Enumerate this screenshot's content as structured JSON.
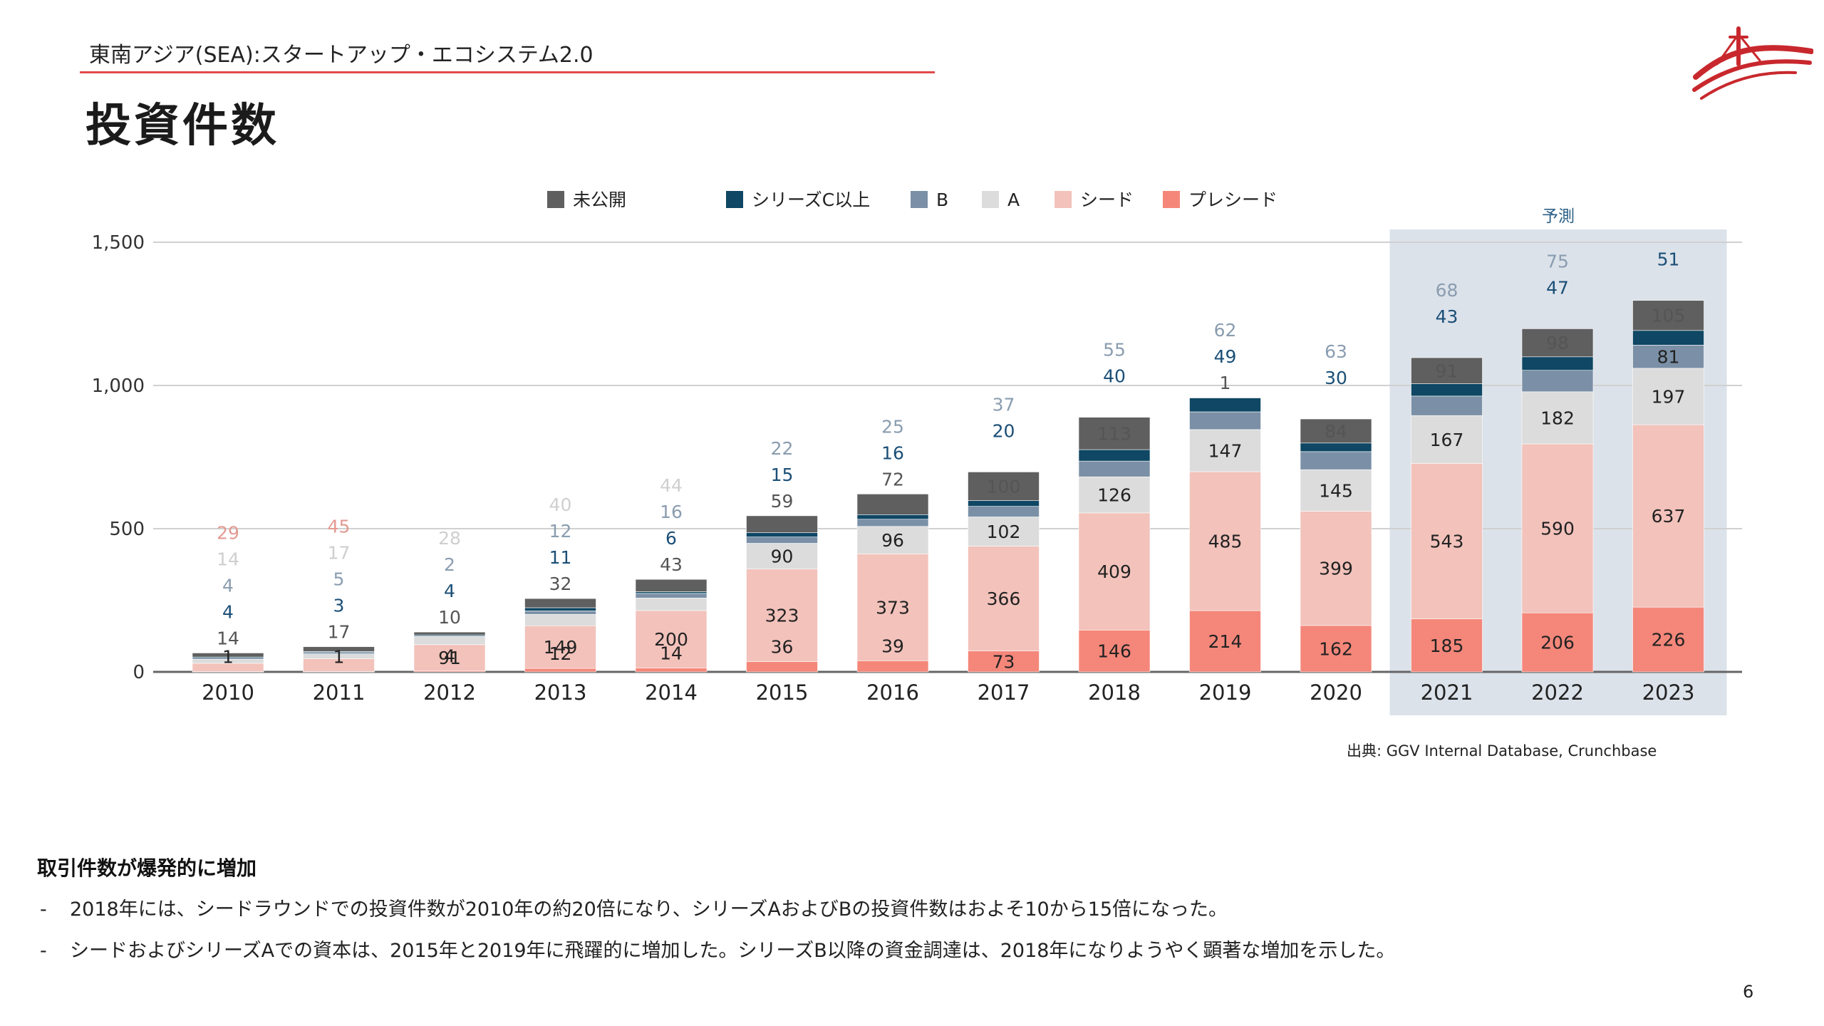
{
  "header": {
    "subtitle": "東南アジア(SEA):スタートアップ・エコシステム2.0",
    "title": "投資件数"
  },
  "colors": {
    "accent": "#e24a4a",
    "forecast_band": "#d6dde6",
    "pre_seed": "#f4877a",
    "seed": "#f2c2bb",
    "series_a": "#dcdcdc",
    "series_b": "#7b90a6",
    "series_c_plus": "#0f4764",
    "undisclosed": "#5f5f5f",
    "logo": "#c8282d"
  },
  "logo_icon": "bridge-logo-icon",
  "chart_data": {
    "type": "bar",
    "stacked": true,
    "categories": [
      "2010",
      "2011",
      "2012",
      "2013",
      "2014",
      "2015",
      "2016",
      "2017",
      "2018",
      "2019",
      "2020",
      "2021",
      "2022",
      "2023"
    ],
    "forecast_label": "予測",
    "forecast_categories": [
      "2021",
      "2022",
      "2023"
    ],
    "ylim": [
      0,
      1500
    ],
    "yticks": [
      0,
      500,
      1000,
      1500
    ],
    "ytick_labels": [
      "0",
      "500",
      "1,000",
      "1,500"
    ],
    "grid": true,
    "legend_position": "top",
    "series": [
      {
        "name": "プレシード",
        "color_key": "pre_seed",
        "values": [
          1,
          1,
          4,
          12,
          14,
          36,
          39,
          73,
          146,
          214,
          162,
          185,
          206,
          226
        ],
        "label_placement": "inside"
      },
      {
        "name": "シード",
        "color_key": "seed",
        "values": [
          29,
          45,
          91,
          149,
          200,
          323,
          373,
          366,
          409,
          485,
          399,
          543,
          590,
          637
        ],
        "label_placement": "mixed"
      },
      {
        "name": "A",
        "color_key": "series_a",
        "values": [
          14,
          17,
          28,
          40,
          44,
          90,
          96,
          102,
          126,
          147,
          145,
          167,
          182,
          197
        ],
        "label_placement": "mixed"
      },
      {
        "name": "B",
        "color_key": "series_b",
        "values": [
          4,
          5,
          2,
          12,
          16,
          22,
          25,
          37,
          55,
          62,
          63,
          68,
          75,
          81
        ],
        "label_placement": "mixed"
      },
      {
        "name": "シリーズC以上",
        "color_key": "series_c_plus",
        "values": [
          4,
          3,
          4,
          11,
          6,
          15,
          16,
          20,
          40,
          49,
          30,
          43,
          47,
          51
        ],
        "label_placement": "above"
      },
      {
        "name": "未公開",
        "color_key": "undisclosed",
        "values": [
          14,
          17,
          10,
          32,
          43,
          59,
          72,
          100,
          113,
          1,
          84,
          91,
          98,
          105
        ],
        "label_placement": "above"
      }
    ],
    "value_labels": [
      {
        "category": "2010",
        "labels": [
          "1",
          "29",
          "14",
          "4",
          "4",
          "14"
        ]
      },
      {
        "category": "2011",
        "labels": [
          "1",
          "45",
          "17",
          "5",
          "3",
          "17"
        ]
      },
      {
        "category": "2012",
        "labels": [
          "4",
          "91",
          "28",
          "2",
          "4",
          "10"
        ]
      },
      {
        "category": "2013",
        "labels": [
          "12",
          "149",
          "40",
          "12",
          "11",
          "32"
        ]
      },
      {
        "category": "2014",
        "labels": [
          "14",
          "200",
          "44",
          "16",
          "6",
          "43"
        ]
      }
    ]
  },
  "source": "出典: GGV Internal Database, Crunchbase",
  "body": {
    "heading": "取引件数が爆発的に増加",
    "bullets": [
      {
        "marker": "-",
        "text": "2018年には、シードラウンドでの投資件数が2010年の約20倍になり、シリーズAおよびBの投資件数はおよそ10から15倍になった。"
      },
      {
        "marker": "-",
        "text": "シードおよびシリーズAでの資本は、2015年と2019年に飛躍的に増加した。シリーズB以降の資金調達は、2018年になりようやく顕著な増加を示した。"
      }
    ]
  },
  "page_number": "6"
}
